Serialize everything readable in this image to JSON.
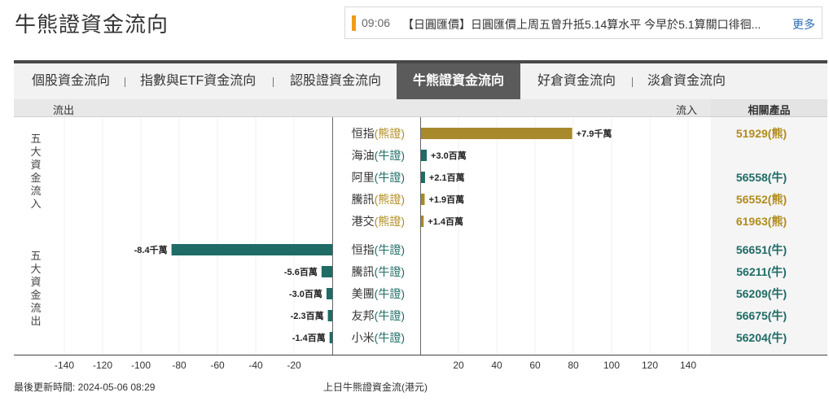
{
  "page": {
    "title": "牛熊證資金流向"
  },
  "news": {
    "time": "09:06",
    "text": "【日圓匯價】日圓匯價上周五曾升抵5.14算水平 今早於5.1算關口徘徊...",
    "more_label": "更多"
  },
  "tabs": [
    {
      "label": "個股資金流向",
      "active": false
    },
    {
      "label": "指數與ETF資金流向",
      "active": false
    },
    {
      "label": "認股證資金流向",
      "active": false
    },
    {
      "label": "牛熊證資金流向",
      "active": true
    },
    {
      "label": "好倉資金流向",
      "active": false
    },
    {
      "label": "淡倉資金流向",
      "active": false
    }
  ],
  "header": {
    "outflow_label": "流出",
    "inflow_label": "流入",
    "product_label": "相關產品"
  },
  "group_labels": {
    "inflow": "五大資金流入",
    "outflow": "五大資金流出"
  },
  "colors": {
    "bear": "#a88a2c",
    "bull": "#1f6b65",
    "bear_text": "#b08c1f",
    "bull_text": "#1f6b65"
  },
  "chart_data": {
    "type": "bar",
    "unit_note": "values in millions HKD (千萬 = 10M, 百萬 = 1M)",
    "x_ticks": [
      -140,
      -120,
      -100,
      -80,
      -60,
      -40,
      -20,
      20,
      40,
      60,
      80,
      100,
      120,
      140
    ],
    "inflow": [
      {
        "name": "恒指",
        "kind": "熊證",
        "type": "bear",
        "value": 79,
        "label": "+7.9千萬",
        "product": "51929(熊)"
      },
      {
        "name": "海油",
        "kind": "牛證",
        "type": "bull",
        "value": 3.0,
        "label": "+3.0百萬",
        "product": ""
      },
      {
        "name": "阿里",
        "kind": "牛證",
        "type": "bull",
        "value": 2.1,
        "label": "+2.1百萬",
        "product": "56558(牛)"
      },
      {
        "name": "騰訊",
        "kind": "熊證",
        "type": "bear",
        "value": 1.9,
        "label": "+1.9百萬",
        "product": "56552(熊)"
      },
      {
        "name": "港交",
        "kind": "熊證",
        "type": "bear",
        "value": 1.4,
        "label": "+1.4百萬",
        "product": "61963(熊)"
      }
    ],
    "outflow": [
      {
        "name": "恒指",
        "kind": "牛證",
        "type": "bull",
        "value": -84,
        "label": "-8.4千萬",
        "product": "56651(牛)"
      },
      {
        "name": "騰訊",
        "kind": "牛證",
        "type": "bull",
        "value": -5.6,
        "label": "-5.6百萬",
        "product": "56211(牛)"
      },
      {
        "name": "美團",
        "kind": "牛證",
        "type": "bull",
        "value": -3.0,
        "label": "-3.0百萬",
        "product": "56209(牛)"
      },
      {
        "name": "友邦",
        "kind": "牛證",
        "type": "bull",
        "value": -2.3,
        "label": "-2.3百萬",
        "product": "56675(牛)"
      },
      {
        "name": "小米",
        "kind": "牛證",
        "type": "bull",
        "value": -1.4,
        "label": "-1.4百萬",
        "product": "56204(牛)"
      }
    ]
  },
  "footer": {
    "update_label": "最後更新時間: 2024-05-06 08:29",
    "caption": "上日牛熊證資金流(港元)"
  }
}
